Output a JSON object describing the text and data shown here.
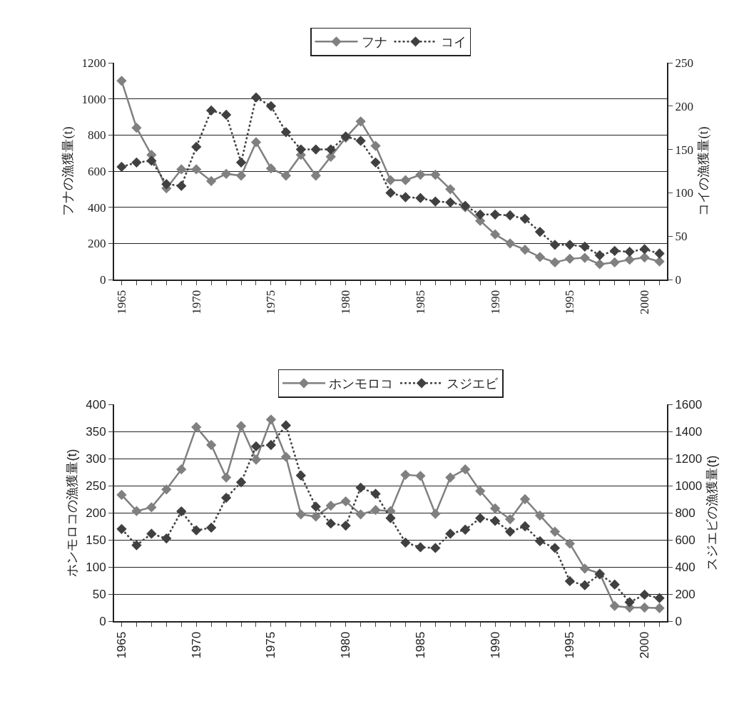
{
  "chart_data": [
    {
      "type": "line",
      "x": [
        1965,
        1966,
        1967,
        1968,
        1969,
        1970,
        1971,
        1972,
        1973,
        1974,
        1975,
        1976,
        1977,
        1978,
        1979,
        1980,
        1981,
        1982,
        1983,
        1984,
        1985,
        1986,
        1987,
        1988,
        1989,
        1990,
        1991,
        1992,
        1993,
        1994,
        1995,
        1996,
        1997,
        1998,
        1999,
        2000,
        2001
      ],
      "ylabel": "フナの漁獲量(t)",
      "y2label": "コイの漁獲量(t)",
      "xlim": [
        1964.5,
        2001.5
      ],
      "xticks": [
        {
          "value": 1965,
          "label": "1965"
        },
        {
          "value": 1966,
          "label": null
        },
        {
          "value": 1967,
          "label": null
        },
        {
          "value": 1968,
          "label": null
        },
        {
          "value": 1969,
          "label": null
        },
        {
          "value": 1970,
          "label": "1970"
        },
        {
          "value": 1971,
          "label": null
        },
        {
          "value": 1972,
          "label": null
        },
        {
          "value": 1973,
          "label": null
        },
        {
          "value": 1974,
          "label": null
        },
        {
          "value": 1975,
          "label": "1975"
        },
        {
          "value": 1976,
          "label": null
        },
        {
          "value": 1977,
          "label": null
        },
        {
          "value": 1978,
          "label": null
        },
        {
          "value": 1979,
          "label": null
        },
        {
          "value": 1980,
          "label": "1980"
        },
        {
          "value": 1981,
          "label": null
        },
        {
          "value": 1982,
          "label": null
        },
        {
          "value": 1983,
          "label": null
        },
        {
          "value": 1984,
          "label": null
        },
        {
          "value": 1985,
          "label": "1985"
        },
        {
          "value": 1986,
          "label": null
        },
        {
          "value": 1987,
          "label": null
        },
        {
          "value": 1988,
          "label": null
        },
        {
          "value": 1989,
          "label": null
        },
        {
          "value": 1990,
          "label": "1990"
        },
        {
          "value": 1991,
          "label": null
        },
        {
          "value": 1992,
          "label": null
        },
        {
          "value": 1993,
          "label": null
        },
        {
          "value": 1994,
          "label": null
        },
        {
          "value": 1995,
          "label": "1995"
        },
        {
          "value": 1996,
          "label": null
        },
        {
          "value": 1997,
          "label": null
        },
        {
          "value": 1998,
          "label": null
        },
        {
          "value": 1999,
          "label": null
        },
        {
          "value": 2000,
          "label": "2000"
        },
        {
          "value": 2001,
          "label": null
        }
      ],
      "ylim": [
        0,
        1200
      ],
      "yticks": [
        0,
        200,
        400,
        600,
        800,
        1000,
        1200
      ],
      "y2lim": [
        0,
        250
      ],
      "y2ticks": [
        0,
        50,
        100,
        150,
        200,
        250
      ],
      "grid": "y",
      "legend": "top",
      "marker": "diamond",
      "series": [
        {
          "name": "フナ",
          "color": "#808080",
          "line_style": "solid",
          "values": [
            1100,
            840,
            690,
            505,
            610,
            610,
            545,
            585,
            575,
            760,
            615,
            575,
            690,
            575,
            680,
            785,
            875,
            740,
            550,
            550,
            580,
            580,
            500,
            400,
            325,
            250,
            200,
            165,
            125,
            95,
            115,
            120,
            85,
            95,
            110,
            122,
            100
          ]
        },
        {
          "name": "コイ",
          "color": "#404040",
          "line_style": "dotted",
          "axis": "y2",
          "values": [
            130,
            135,
            137,
            110,
            108,
            153,
            195,
            190,
            135,
            210,
            200,
            170,
            150,
            150,
            150,
            165,
            160,
            135,
            100,
            95,
            94,
            90,
            89,
            85,
            75,
            75,
            74,
            70,
            55,
            40,
            40,
            38,
            28,
            33,
            32,
            35,
            30
          ]
        }
      ]
    },
    {
      "type": "line",
      "x": [
        1965,
        1966,
        1967,
        1968,
        1969,
        1970,
        1971,
        1972,
        1973,
        1974,
        1975,
        1976,
        1977,
        1978,
        1979,
        1980,
        1981,
        1982,
        1983,
        1984,
        1985,
        1986,
        1987,
        1988,
        1989,
        1990,
        1991,
        1992,
        1993,
        1994,
        1995,
        1996,
        1997,
        1998,
        1999,
        2000,
        2001
      ],
      "ylabel": "ホンモロコの漁獲量(t)",
      "y2label": "スジエビの漁獲量(t)",
      "xlim": [
        1964.5,
        2001.5
      ],
      "xticks": [
        {
          "value": 1965,
          "label": "1965"
        },
        {
          "value": 1966,
          "label": null
        },
        {
          "value": 1967,
          "label": null
        },
        {
          "value": 1968,
          "label": null
        },
        {
          "value": 1969,
          "label": null
        },
        {
          "value": 1970,
          "label": "1970"
        },
        {
          "value": 1971,
          "label": null
        },
        {
          "value": 1972,
          "label": null
        },
        {
          "value": 1973,
          "label": null
        },
        {
          "value": 1974,
          "label": null
        },
        {
          "value": 1975,
          "label": "1975"
        },
        {
          "value": 1976,
          "label": null
        },
        {
          "value": 1977,
          "label": null
        },
        {
          "value": 1978,
          "label": null
        },
        {
          "value": 1979,
          "label": null
        },
        {
          "value": 1980,
          "label": "1980"
        },
        {
          "value": 1981,
          "label": null
        },
        {
          "value": 1982,
          "label": null
        },
        {
          "value": 1983,
          "label": null
        },
        {
          "value": 1984,
          "label": null
        },
        {
          "value": 1985,
          "label": "1985"
        },
        {
          "value": 1986,
          "label": null
        },
        {
          "value": 1987,
          "label": null
        },
        {
          "value": 1988,
          "label": null
        },
        {
          "value": 1989,
          "label": null
        },
        {
          "value": 1990,
          "label": "1990"
        },
        {
          "value": 1991,
          "label": null
        },
        {
          "value": 1992,
          "label": null
        },
        {
          "value": 1993,
          "label": null
        },
        {
          "value": 1994,
          "label": null
        },
        {
          "value": 1995,
          "label": "1995"
        },
        {
          "value": 1996,
          "label": null
        },
        {
          "value": 1997,
          "label": null
        },
        {
          "value": 1998,
          "label": null
        },
        {
          "value": 1999,
          "label": null
        },
        {
          "value": 2000,
          "label": "2000"
        },
        {
          "value": 2001,
          "label": null
        }
      ],
      "ylim": [
        0,
        400
      ],
      "yticks": [
        0,
        50,
        100,
        150,
        200,
        250,
        300,
        350,
        400
      ],
      "y2lim": [
        0,
        1600
      ],
      "y2ticks": [
        0,
        200,
        400,
        600,
        800,
        1000,
        1200,
        1400,
        1600
      ],
      "grid": "y",
      "legend": "top",
      "marker": "diamond",
      "series": [
        {
          "name": "ホンモロコ",
          "color": "#808080",
          "line_style": "solid",
          "values": [
            233,
            203,
            210,
            243,
            280,
            358,
            325,
            265,
            360,
            298,
            372,
            303,
            197,
            193,
            213,
            221,
            197,
            205,
            203,
            270,
            268,
            198,
            265,
            280,
            240,
            208,
            188,
            225,
            195,
            165,
            143,
            97,
            88,
            28,
            25,
            25,
            24
          ]
        },
        {
          "name": "スジエビ",
          "color": "#404040",
          "line_style": "dotted",
          "axis": "y2",
          "values": [
            680,
            560,
            645,
            610,
            810,
            670,
            690,
            910,
            1025,
            1290,
            1300,
            1445,
            1075,
            845,
            720,
            705,
            985,
            940,
            760,
            580,
            545,
            540,
            645,
            675,
            760,
            740,
            660,
            700,
            590,
            540,
            295,
            265,
            345,
            270,
            140,
            195,
            170
          ]
        }
      ]
    }
  ]
}
